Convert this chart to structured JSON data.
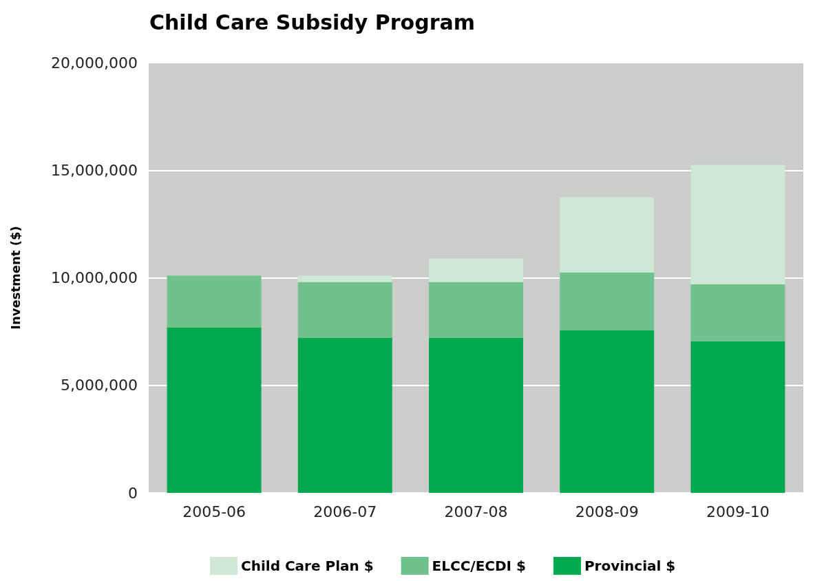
{
  "chart_data": {
    "type": "bar",
    "title": "Child Care Subsidy Program",
    "ylabel": "Investment ($)",
    "categories": [
      "2005-06",
      "2006-07",
      "2007-08",
      "2008-09",
      "2009-10"
    ],
    "stacked": true,
    "series": [
      {
        "name": "Provincial $",
        "color": "#00a84f",
        "values": [
          7700000,
          7200000,
          7200000,
          7550000,
          7050000
        ]
      },
      {
        "name": "ELCC/ECDI $",
        "color": "#70c28c",
        "values": [
          2400000,
          2600000,
          2600000,
          2700000,
          2650000
        ]
      },
      {
        "name": "Child Care Plan $",
        "color": "#cfe8d5",
        "values": [
          0,
          300000,
          1100000,
          3500000,
          5550000
        ]
      }
    ],
    "ylim": [
      0,
      20000000
    ],
    "yticks": [
      {
        "value": 0,
        "label": "0"
      },
      {
        "value": 5000000,
        "label": "5,000,000"
      },
      {
        "value": 10000000,
        "label": "10,000,000"
      },
      {
        "value": 15000000,
        "label": "15,000,000"
      },
      {
        "value": 20000000,
        "label": "20,000,000"
      }
    ],
    "grid": "y",
    "legend": "bottom"
  }
}
